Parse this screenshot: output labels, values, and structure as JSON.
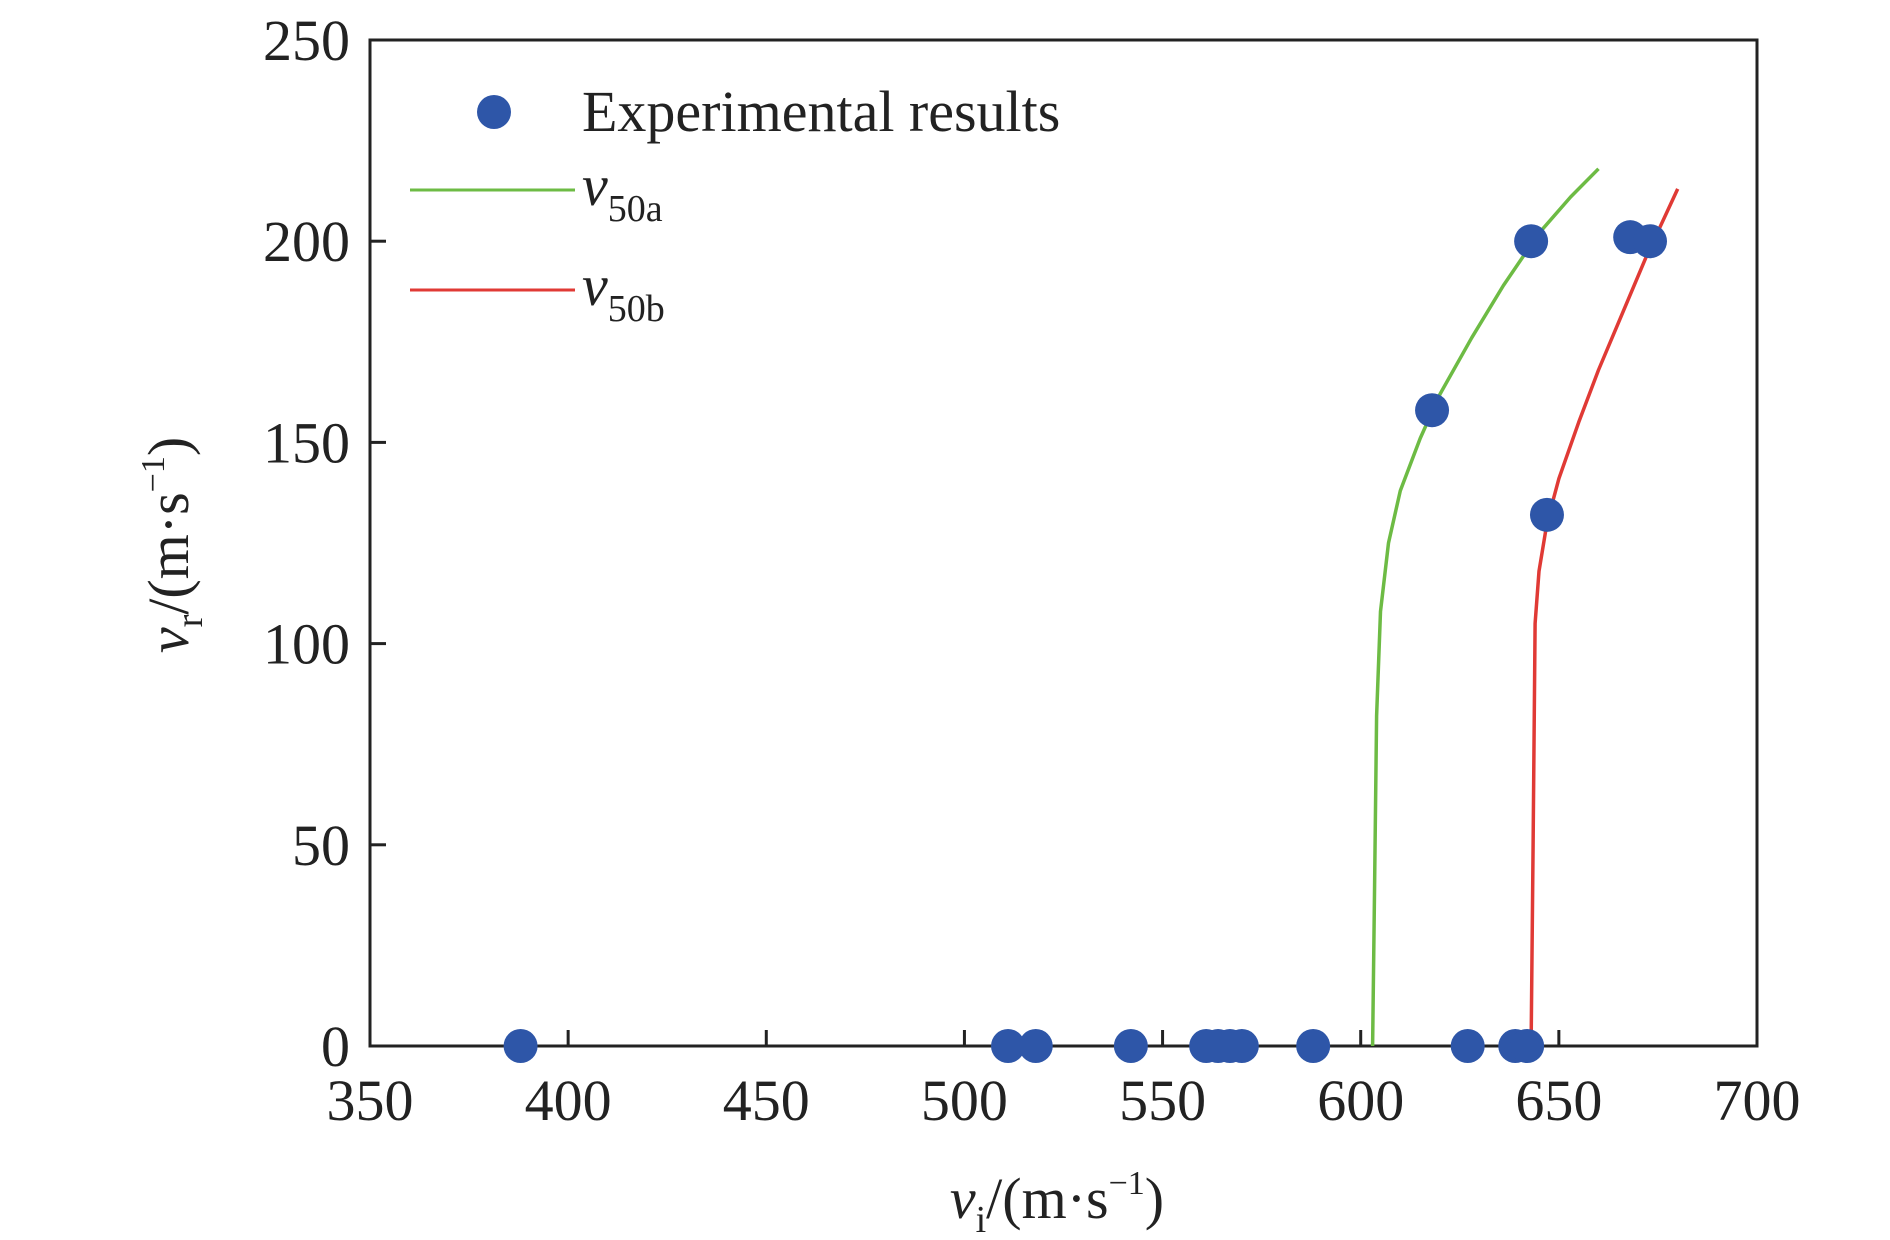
{
  "chart_data": {
    "type": "scatter",
    "xlim": [
      350,
      700
    ],
    "ylim": [
      0,
      250
    ],
    "x_ticks": [
      "350",
      "400",
      "450",
      "500",
      "550",
      "600",
      "650",
      "700"
    ],
    "y_ticks": [
      "0",
      "50",
      "100",
      "150",
      "200",
      "250"
    ],
    "xlabel": {
      "var": "v",
      "sub": "i",
      "unit_pre": "/(m·s",
      "sup": "−1",
      "unit_post": ")"
    },
    "ylabel": {
      "var": "v",
      "sub": "r",
      "unit_pre": "/(m·s",
      "sup": "−1",
      "unit_post": ")"
    },
    "grid": false,
    "legend_position": "top-left",
    "legend": {
      "points_label": "Experimental results",
      "series_a": {
        "var": "v",
        "sub": "50a"
      },
      "series_b": {
        "var": "v",
        "sub": "50b"
      }
    },
    "colors": {
      "points": "#2e56a8",
      "series_a": "#6dbb44",
      "series_b": "#e03a35",
      "axis": "#222222"
    },
    "points": [
      [
        388,
        0
      ],
      [
        511,
        0
      ],
      [
        518,
        0
      ],
      [
        542,
        0
      ],
      [
        561,
        0
      ],
      [
        564,
        0
      ],
      [
        567,
        0
      ],
      [
        570,
        0
      ],
      [
        588,
        0
      ],
      [
        627,
        0
      ],
      [
        639,
        0
      ],
      [
        642,
        0
      ],
      [
        618,
        158
      ],
      [
        643,
        200
      ],
      [
        647,
        132
      ],
      [
        668,
        201
      ],
      [
        673,
        200
      ]
    ],
    "series": [
      {
        "id": "v50a",
        "color": "#6dbb44",
        "x": [
          603,
          603.5,
          604,
          605,
          607,
          610,
          615,
          620,
          628,
          636,
          645,
          653,
          660
        ],
        "y": [
          0,
          40,
          82,
          108,
          125,
          138,
          151,
          162,
          176,
          189,
          202,
          211,
          218
        ]
      },
      {
        "id": "v50b",
        "color": "#e03a35",
        "x": [
          643,
          643.5,
          644,
          645,
          647,
          650,
          655,
          660,
          666,
          672,
          680
        ],
        "y": [
          0,
          50,
          105,
          118,
          130,
          141,
          155,
          168,
          182,
          196,
          213
        ]
      }
    ]
  }
}
